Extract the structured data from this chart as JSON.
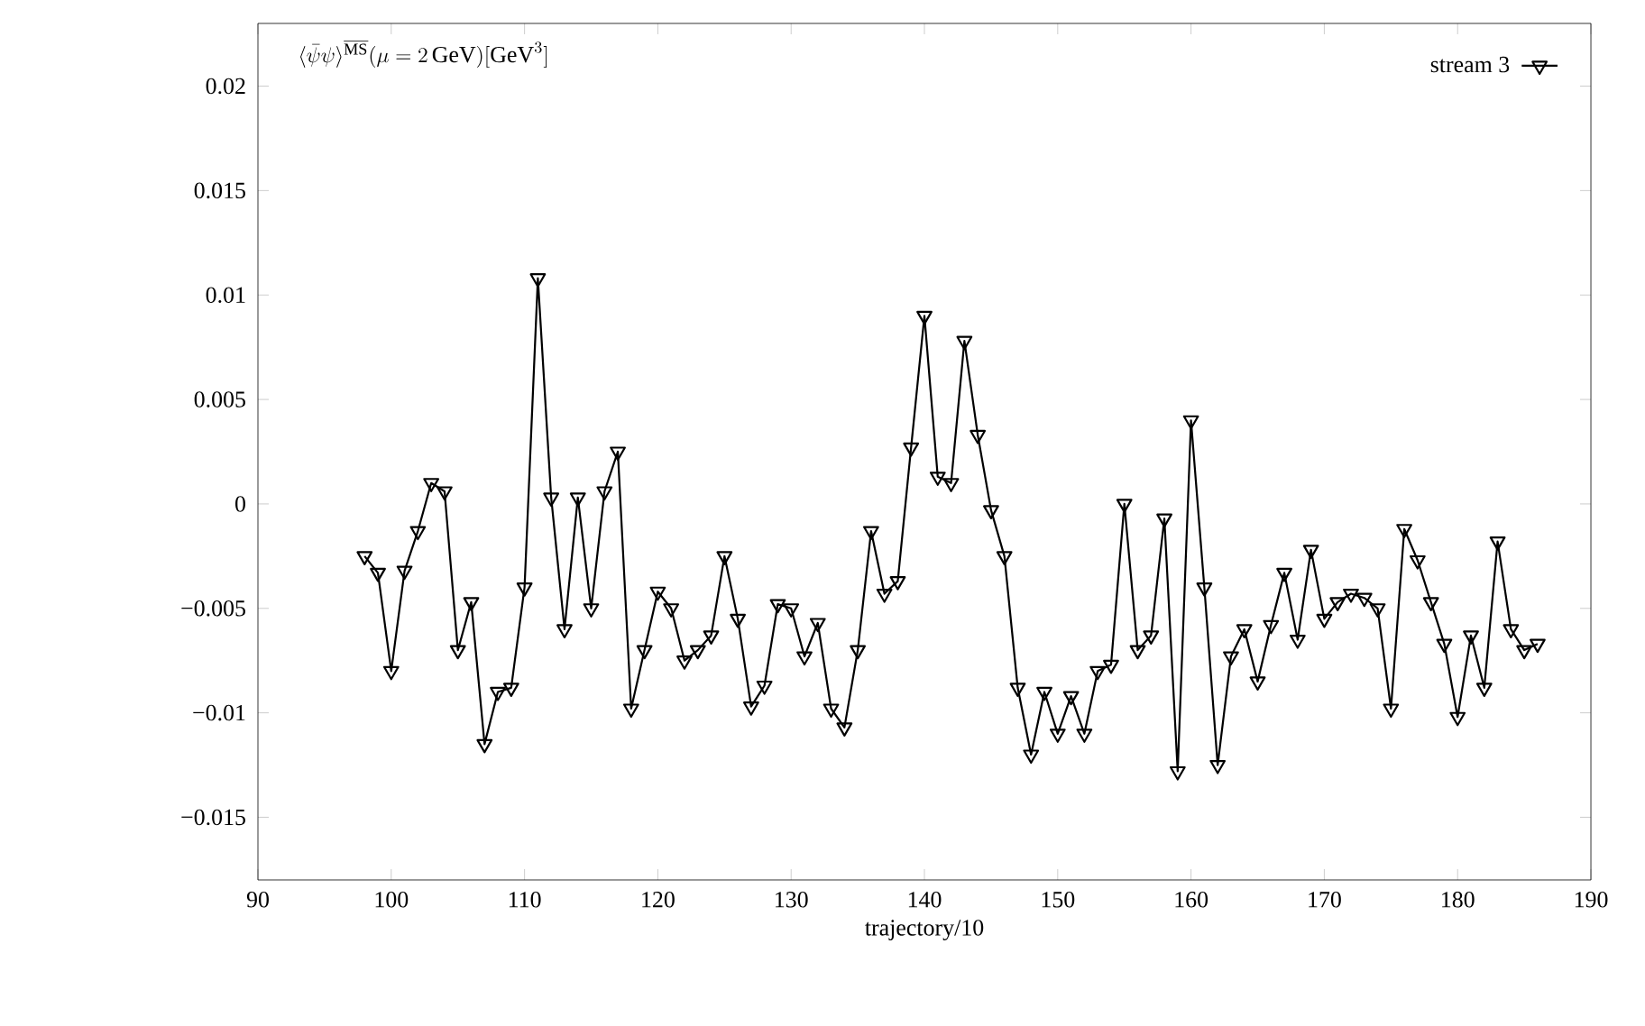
{
  "chart_data": {
    "type": "line",
    "ylabel": "\\langle\\bar{\\psi}\\psi\\rangle^{\\overline{\\mathrm{MS}}}(\\mu=2\\,\\mathrm{GeV})[\\mathrm{GeV}^3]",
    "xlabel": "trajectory/10",
    "xlim": [
      90,
      190
    ],
    "xticks": [
      90,
      100,
      110,
      120,
      130,
      140,
      150,
      160,
      170,
      180,
      190
    ],
    "ylim": [
      -0.018,
      0.023
    ],
    "yticks": [
      {
        "value": -0.015,
        "label": "−0.015"
      },
      {
        "value": -0.01,
        "label": "−0.01"
      },
      {
        "value": -0.005,
        "label": "−0.005"
      },
      0,
      0.005,
      0.01,
      0.015,
      0.02
    ],
    "legend": "top right",
    "marker": "triangle",
    "line_style": "solid",
    "grid": false,
    "x": [
      98,
      99,
      100,
      101,
      102,
      103,
      104,
      105,
      106,
      107,
      108,
      109,
      110,
      111,
      112,
      113,
      114,
      115,
      116,
      117,
      118,
      119,
      120,
      121,
      122,
      123,
      124,
      125,
      126,
      127,
      128,
      129,
      130,
      131,
      132,
      133,
      134,
      135,
      136,
      137,
      138,
      139,
      140,
      141,
      142,
      143,
      144,
      145,
      146,
      147,
      148,
      149,
      150,
      151,
      152,
      153,
      154,
      155,
      156,
      157,
      158,
      159,
      160,
      161,
      162,
      163,
      164,
      165,
      166,
      167,
      168,
      169,
      170,
      171,
      172,
      173,
      174,
      175,
      176,
      177,
      178,
      179,
      180,
      181,
      182,
      183,
      184,
      185,
      186
    ],
    "series": [
      {
        "name": "stream 3",
        "color": "#000000",
        "values": [
          -0.0025,
          -0.0033,
          -0.008,
          -0.0032,
          -0.0013,
          0.001,
          0.0006,
          -0.007,
          -0.0047,
          -0.0115,
          -0.009,
          -0.0088,
          -0.004,
          0.0108,
          0.0003,
          -0.006,
          0.0003,
          -0.005,
          0.0006,
          0.0025,
          -0.0098,
          -0.007,
          -0.0042,
          -0.005,
          -0.0075,
          -0.007,
          -0.0063,
          -0.0025,
          -0.0055,
          -0.0097,
          -0.0087,
          -0.0048,
          -0.005,
          -0.0073,
          -0.0057,
          -0.0098,
          -0.0107,
          -0.007,
          -0.0013,
          -0.0043,
          -0.0037,
          0.0027,
          0.009,
          0.0013,
          0.001,
          0.0078,
          0.0033,
          -0.0003,
          -0.0025,
          -0.0088,
          -0.012,
          -0.009,
          -0.011,
          -0.0092,
          -0.011,
          -0.008,
          -0.0077,
          0.0,
          -0.007,
          -0.0063,
          -0.0007,
          -0.0128,
          0.004,
          -0.004,
          -0.0125,
          -0.0073,
          -0.006,
          -0.0085,
          -0.0058,
          -0.0033,
          -0.0065,
          -0.0022,
          -0.0055,
          -0.0047,
          -0.0043,
          -0.0045,
          -0.005,
          -0.0098,
          -0.0012,
          -0.0027,
          -0.0047,
          -0.0067,
          -0.0102,
          -0.0063,
          -0.0088,
          -0.0018,
          -0.006,
          -0.007,
          -0.0067
        ]
      }
    ]
  }
}
